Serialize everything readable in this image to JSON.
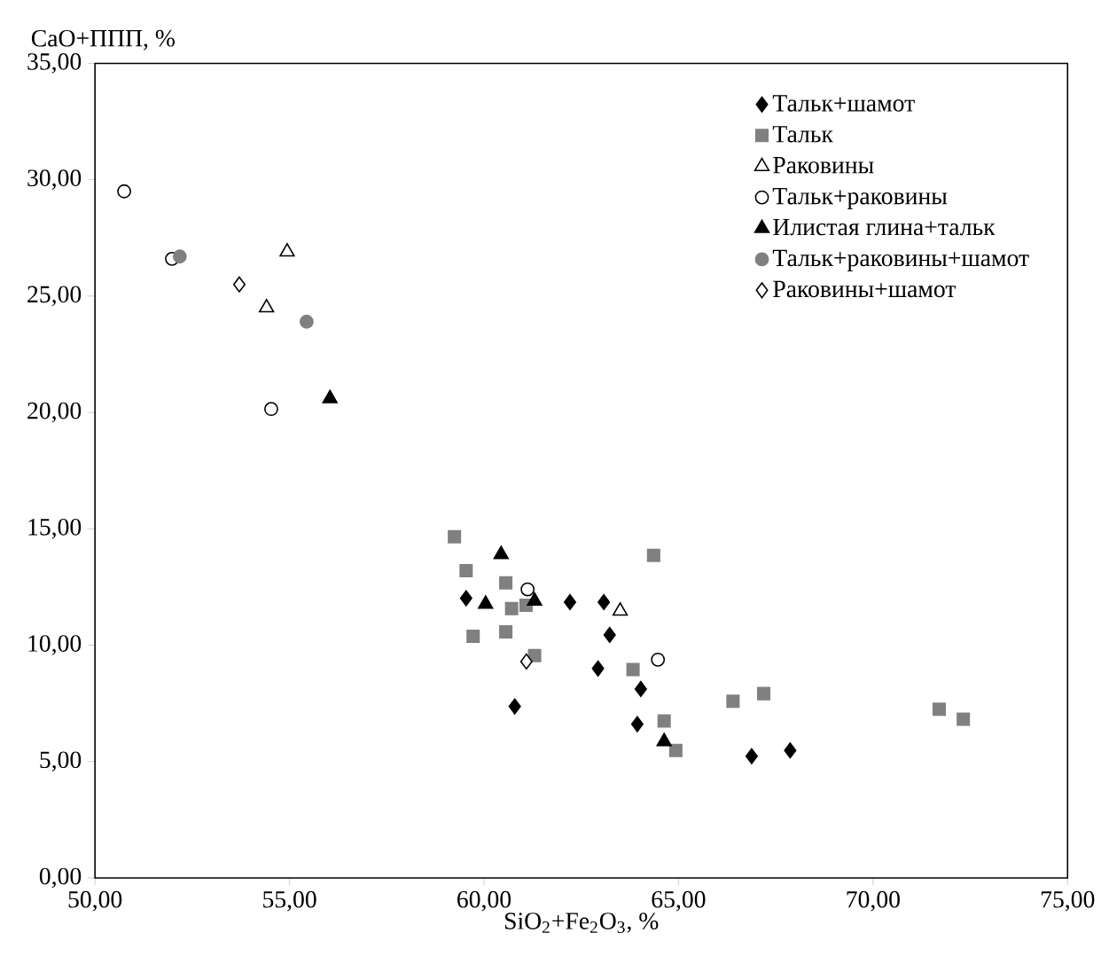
{
  "chart_data": {
    "type": "scatter",
    "xlabel": "SiO$_{2}$+Fe$_{2}$O$_{3}$, %",
    "ylabel": "CaO+ППП, %",
    "xlim": [
      50,
      75
    ],
    "ylim": [
      0,
      35
    ],
    "xticks": [
      {
        "value": 50,
        "label": "50,00"
      },
      {
        "value": 55,
        "label": "55,00"
      },
      {
        "value": 60,
        "label": "60,00"
      },
      {
        "value": 65,
        "label": "65,00"
      },
      {
        "value": 70,
        "label": "70,00"
      },
      {
        "value": 75,
        "label": "75,00"
      }
    ],
    "yticks": [
      {
        "value": 0,
        "label": "0,00"
      },
      {
        "value": 5,
        "label": "5,00"
      },
      {
        "value": 10,
        "label": "10,00"
      },
      {
        "value": 15,
        "label": "15,00"
      },
      {
        "value": 20,
        "label": "20,00"
      },
      {
        "value": 25,
        "label": "25,00"
      },
      {
        "value": 30,
        "label": "30,00"
      },
      {
        "value": 35,
        "label": "35,00"
      }
    ],
    "grid": false,
    "legend": "top right",
    "series": [
      {
        "name": "Тальк+шамот",
        "color": "#000000",
        "marker": "diamond",
        "x": [
          59.54,
          62.21,
          63.08,
          63.23,
          62.93,
          64.03,
          63.94,
          60.79,
          66.88,
          67.87
        ],
        "values": [
          12.02,
          11.85,
          11.85,
          10.44,
          9.0,
          8.12,
          6.61,
          7.37,
          5.23,
          5.48
        ]
      },
      {
        "name": "Тальк",
        "color": "#808080",
        "marker": "square",
        "x": [
          59.24,
          59.54,
          60.56,
          60.71,
          61.08,
          59.72,
          60.56,
          61.3,
          64.36,
          63.83,
          64.63,
          64.93,
          66.4,
          67.19,
          71.7,
          72.32
        ],
        "values": [
          14.66,
          13.2,
          12.68,
          11.57,
          11.72,
          10.38,
          10.57,
          9.55,
          13.86,
          8.95,
          6.74,
          5.48,
          7.59,
          7.92,
          7.25,
          6.82
        ]
      },
      {
        "name": "Раковины",
        "color": "#ffffff",
        "marker": "triangle",
        "x": [
          54.94,
          54.41,
          63.5
        ],
        "values": [
          26.9,
          24.5,
          11.47
        ]
      },
      {
        "name": "Тальк+раковины",
        "color": "#ffffff",
        "marker": "circle",
        "x": [
          50.75,
          51.98,
          54.53,
          61.12,
          64.47
        ],
        "values": [
          29.5,
          26.6,
          20.15,
          12.4,
          9.38
        ]
      },
      {
        "name": "Илистая глина+тальк",
        "color": "#000000",
        "marker": "triangle",
        "x": [
          56.04,
          60.44,
          60.04,
          61.3,
          64.63
        ],
        "values": [
          20.6,
          13.9,
          11.77,
          11.9,
          5.86
        ]
      },
      {
        "name": "Тальк+раковины+шамот",
        "color": "#808080",
        "marker": "circle",
        "x": [
          52.18,
          55.44
        ],
        "values": [
          26.7,
          23.9
        ]
      },
      {
        "name": "Раковины+шамот",
        "color": "#ffffff",
        "marker": "diamond",
        "x": [
          53.71,
          61.09
        ],
        "values": [
          25.5,
          9.3
        ]
      }
    ]
  }
}
